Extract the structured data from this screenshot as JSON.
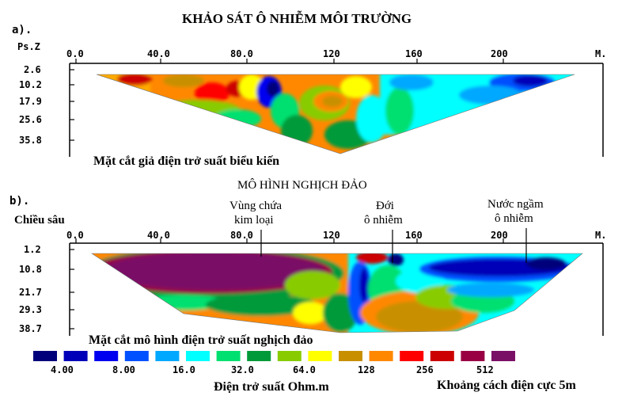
{
  "title": "KHẢO SÁT Ô NHIỄM MÔI TRƯỜNG",
  "panel_a": {
    "label": "a).",
    "depth_header": "Ps.Z",
    "x_ticks": [
      "0.0",
      "40.0",
      "80.0",
      "120",
      "160",
      "200"
    ],
    "x_unit": "M.",
    "depths": [
      "2.6",
      "10.2",
      "17.9",
      "25.6",
      "35.8"
    ],
    "caption": "Mặt cắt giả điện trở suất biểu kiến"
  },
  "panel_b": {
    "label": "b).",
    "subtitle": "MÔ HÌNH NGHỊCH ĐẢO",
    "depth_header": "Chiều sâu",
    "x_ticks": [
      "0.0",
      "40.0",
      "80.0",
      "120",
      "160",
      "200"
    ],
    "x_unit": "M.",
    "depths": [
      "1.2",
      "10.8",
      "21.7",
      "29.3",
      "38.7"
    ],
    "annotations": [
      {
        "line1": "Vùng chứa",
        "line2": "kim loại"
      },
      {
        "line1": "Đới",
        "line2": "ô nhiễm"
      },
      {
        "line1": "Nước ngầm",
        "line2": "ô nhiễm"
      }
    ],
    "caption": "Mặt cắt mô hình điện trở suất nghịch đảo"
  },
  "legend": {
    "colors": [
      "#00007a",
      "#0000b8",
      "#0000f0",
      "#0050ff",
      "#00a8ff",
      "#00ffff",
      "#00e070",
      "#009a3a",
      "#88cc00",
      "#ffff00",
      "#c89000",
      "#ff8800",
      "#ff0000",
      "#cc0000",
      "#990044",
      "#7a1066"
    ],
    "tick_labels": [
      "4.00",
      "8.00",
      "16.0",
      "32.0",
      "64.0",
      "128",
      "256",
      "512"
    ],
    "title": "Điện trở suất Ohm.m",
    "spacing_note": "Khoảng cách điện cực 5m"
  }
}
